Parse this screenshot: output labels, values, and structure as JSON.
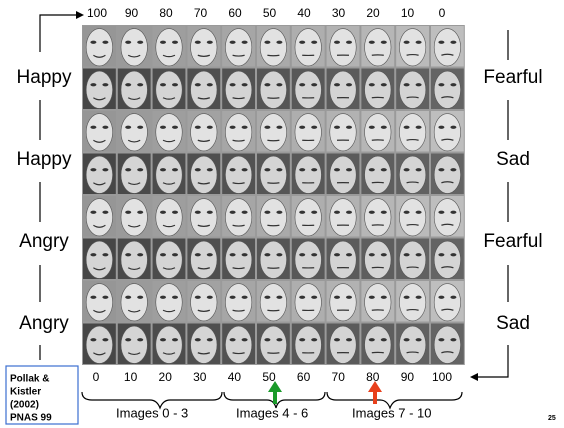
{
  "top_scale": [
    100,
    90,
    80,
    70,
    60,
    50,
    40,
    30,
    20,
    10,
    0
  ],
  "rows": [
    {
      "left": "Happy",
      "right": "Fearful"
    },
    {
      "left": "Happy",
      "right": "Sad"
    },
    {
      "left": "Angry",
      "right": "Fearful"
    },
    {
      "left": "Angry",
      "right": "Sad"
    }
  ],
  "bottom_scale": [
    0,
    10,
    20,
    30,
    40,
    50,
    60,
    70,
    80,
    90,
    100
  ],
  "citation": [
    "Pollak &",
    "Kistler",
    "(2002)",
    "PNAS 99"
  ],
  "groups": [
    "Images 0 - 3",
    "Images 4 - 6",
    "Images 7 - 10"
  ],
  "page_number": "25"
}
